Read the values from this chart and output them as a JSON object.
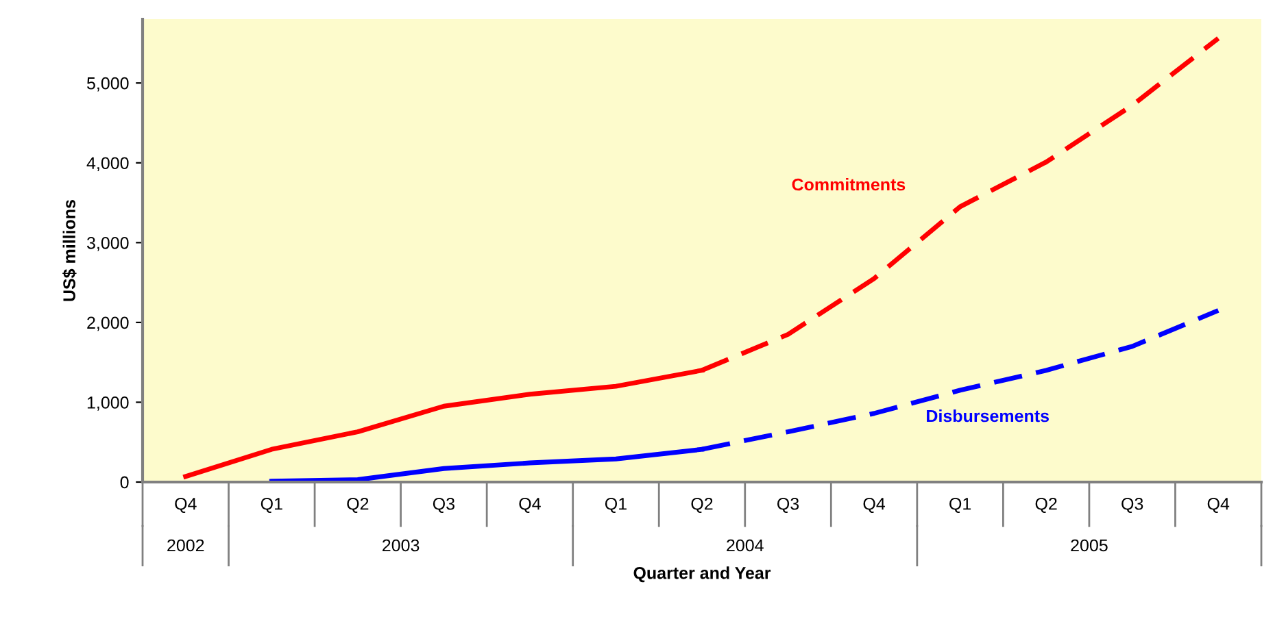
{
  "chart_data": {
    "type": "line",
    "ylabel": "US$ millions",
    "xlabel": "Quarter and Year",
    "categories": [
      "Q4",
      "Q1",
      "Q2",
      "Q3",
      "Q4",
      "Q1",
      "Q2",
      "Q3",
      "Q4",
      "Q1",
      "Q2",
      "Q3",
      "Q4"
    ],
    "series": [
      {
        "name": "Commitments",
        "color": "#ff0000",
        "line_style": "solid",
        "values": [
          70,
          410,
          630,
          950,
          1100,
          1200,
          1400,
          null,
          null,
          null,
          null,
          null,
          null
        ]
      },
      {
        "color": "#ff0000",
        "line_style": "dashed",
        "values": [
          null,
          null,
          null,
          null,
          null,
          null,
          1400,
          1850,
          2550,
          3450,
          4010,
          4720,
          5560
        ]
      },
      {
        "name": "Disbursements",
        "color": "#0000ff",
        "line_style": "solid",
        "values": [
          null,
          10,
          30,
          170,
          240,
          290,
          410,
          null,
          null,
          null,
          null,
          null,
          null
        ]
      },
      {
        "color": "#0000ff",
        "line_style": "dashed",
        "values": [
          null,
          null,
          null,
          null,
          null,
          null,
          410,
          630,
          860,
          1150,
          1400,
          1700,
          2150
        ]
      }
    ],
    "ylim": [
      0,
      5800
    ],
    "yticks": [
      0,
      {
        "value": 1000,
        "label": "1,000"
      },
      {
        "value": 2000,
        "label": "2,000"
      },
      {
        "value": 3000,
        "label": "3,000"
      },
      {
        "value": 4000,
        "label": "4,000"
      },
      {
        "value": 5000,
        "label": "5,000"
      }
    ],
    "grid": false,
    "legend": false,
    "marker": "none",
    "annotations": [
      "2002",
      "2003",
      "2004",
      "2005"
    ]
  }
}
